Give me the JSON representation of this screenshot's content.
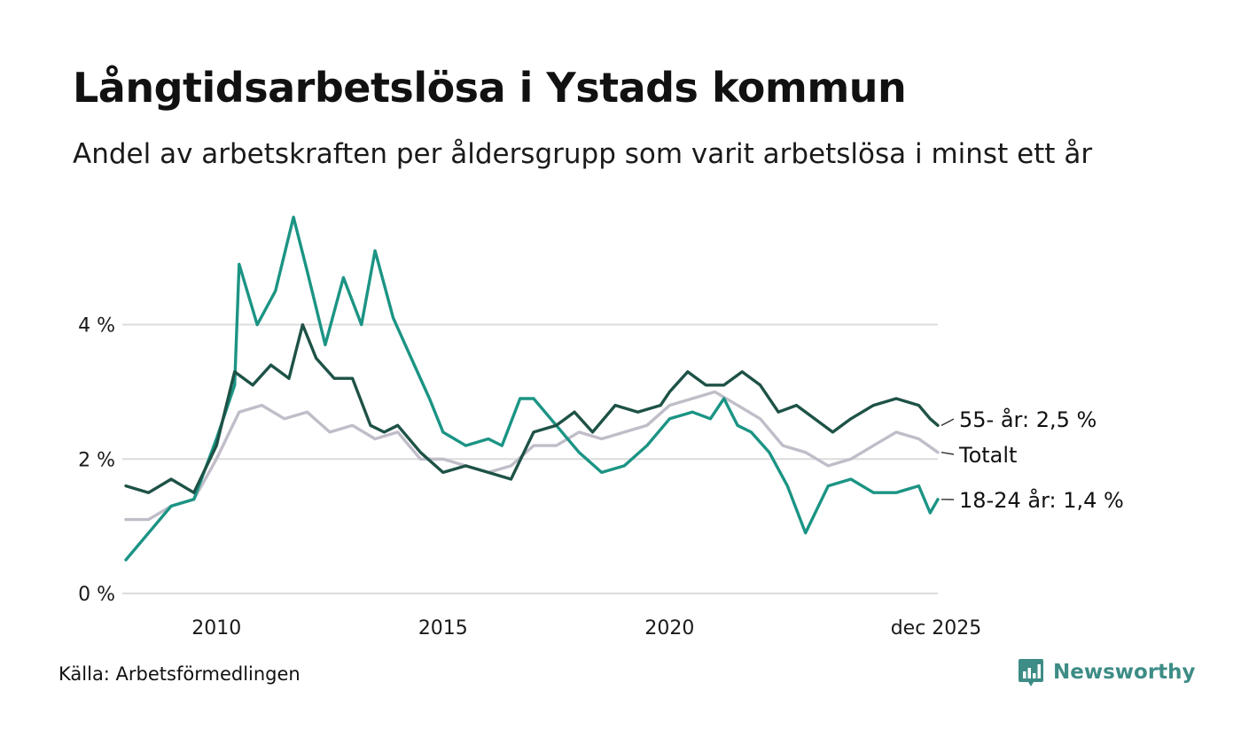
{
  "header": {
    "title": "Långtidsarbetslösa i Ystads kommun",
    "subtitle": "Andel av arbetskraften per åldersgrupp som varit arbetslösa i minst ett år"
  },
  "footer": {
    "source": "Källa: Arbetsförmedlingen",
    "brand": "Newsworthy",
    "brand_icon": "newsworthy-logo-icon",
    "brand_color": "#3d8c86"
  },
  "chart_data": {
    "type": "line",
    "title": "Långtidsarbetslösa i Ystads kommun",
    "xlabel": "",
    "ylabel": "",
    "grid": true,
    "ylim": [
      0,
      5.8
    ],
    "xlim": [
      2008.0,
      2025.92
    ],
    "yticks": [
      0,
      2,
      4
    ],
    "ytick_labels": [
      "0 %",
      "2 %",
      "4 %"
    ],
    "xticks": [
      2010,
      2015,
      2020,
      2025.92
    ],
    "xtick_labels": [
      "2010",
      "2015",
      "2020",
      "dec 2025"
    ],
    "series": [
      {
        "name": "18-24 år",
        "label": "18-24 år: 1,4 %",
        "color": "#1b9484",
        "x": [
          2008.0,
          2008.5,
          2009.0,
          2009.5,
          2010.0,
          2010.4,
          2010.5,
          2010.9,
          2011.3,
          2011.7,
          2012.0,
          2012.4,
          2012.8,
          2013.2,
          2013.5,
          2013.9,
          2014.3,
          2014.7,
          2015.0,
          2015.5,
          2016.0,
          2016.3,
          2016.7,
          2017.0,
          2017.5,
          2018.0,
          2018.5,
          2019.0,
          2019.5,
          2020.0,
          2020.5,
          2020.9,
          2021.2,
          2021.5,
          2021.8,
          2022.2,
          2022.6,
          2023.0,
          2023.5,
          2024.0,
          2024.5,
          2025.0,
          2025.5,
          2025.75,
          2025.92
        ],
        "values": [
          0.5,
          0.9,
          1.3,
          1.4,
          2.3,
          3.1,
          4.9,
          4.0,
          4.5,
          5.6,
          4.8,
          3.7,
          4.7,
          4.0,
          5.1,
          4.1,
          3.5,
          2.9,
          2.4,
          2.2,
          2.3,
          2.2,
          2.9,
          2.9,
          2.5,
          2.1,
          1.8,
          1.9,
          2.2,
          2.6,
          2.7,
          2.6,
          2.9,
          2.5,
          2.4,
          2.1,
          1.6,
          0.9,
          1.6,
          1.7,
          1.5,
          1.5,
          1.6,
          1.2,
          1.4
        ],
        "end_value_label": "1,4 %"
      },
      {
        "name": "55- år",
        "label": "55- år: 2,5 %",
        "color": "#1e5247",
        "x": [
          2008.0,
          2008.5,
          2009.0,
          2009.5,
          2010.0,
          2010.4,
          2010.8,
          2011.2,
          2011.6,
          2011.9,
          2012.2,
          2012.6,
          2013.0,
          2013.4,
          2013.7,
          2014.0,
          2014.5,
          2015.0,
          2015.5,
          2016.0,
          2016.5,
          2017.0,
          2017.5,
          2017.9,
          2018.3,
          2018.8,
          2019.3,
          2019.8,
          2020.0,
          2020.4,
          2020.8,
          2021.2,
          2021.6,
          2022.0,
          2022.4,
          2022.8,
          2023.2,
          2023.6,
          2024.0,
          2024.5,
          2025.0,
          2025.5,
          2025.75,
          2025.92
        ],
        "values": [
          1.6,
          1.5,
          1.7,
          1.5,
          2.2,
          3.3,
          3.1,
          3.4,
          3.2,
          4.0,
          3.5,
          3.2,
          3.2,
          2.5,
          2.4,
          2.5,
          2.1,
          1.8,
          1.9,
          1.8,
          1.7,
          2.4,
          2.5,
          2.7,
          2.4,
          2.8,
          2.7,
          2.8,
          3.0,
          3.3,
          3.1,
          3.1,
          3.3,
          3.1,
          2.7,
          2.8,
          2.6,
          2.4,
          2.6,
          2.8,
          2.9,
          2.8,
          2.6,
          2.5
        ],
        "end_value_label": "2,5 %"
      },
      {
        "name": "Totalt",
        "label": "Totalt",
        "color": "#c0bdc8",
        "x": [
          2008.0,
          2008.5,
          2009.0,
          2009.5,
          2010.0,
          2010.5,
          2011.0,
          2011.5,
          2012.0,
          2012.5,
          2013.0,
          2013.5,
          2014.0,
          2014.5,
          2015.0,
          2015.5,
          2016.0,
          2016.5,
          2017.0,
          2017.5,
          2018.0,
          2018.5,
          2019.0,
          2019.5,
          2020.0,
          2020.5,
          2021.0,
          2021.5,
          2022.0,
          2022.5,
          2023.0,
          2023.5,
          2024.0,
          2024.5,
          2025.0,
          2025.5,
          2025.92
        ],
        "values": [
          1.1,
          1.1,
          1.3,
          1.4,
          2.0,
          2.7,
          2.8,
          2.6,
          2.7,
          2.4,
          2.5,
          2.3,
          2.4,
          2.0,
          2.0,
          1.9,
          1.8,
          1.9,
          2.2,
          2.2,
          2.4,
          2.3,
          2.4,
          2.5,
          2.8,
          2.9,
          3.0,
          2.8,
          2.6,
          2.2,
          2.1,
          1.9,
          2.0,
          2.2,
          2.4,
          2.3,
          2.1
        ],
        "end_value_label": ""
      }
    ]
  }
}
